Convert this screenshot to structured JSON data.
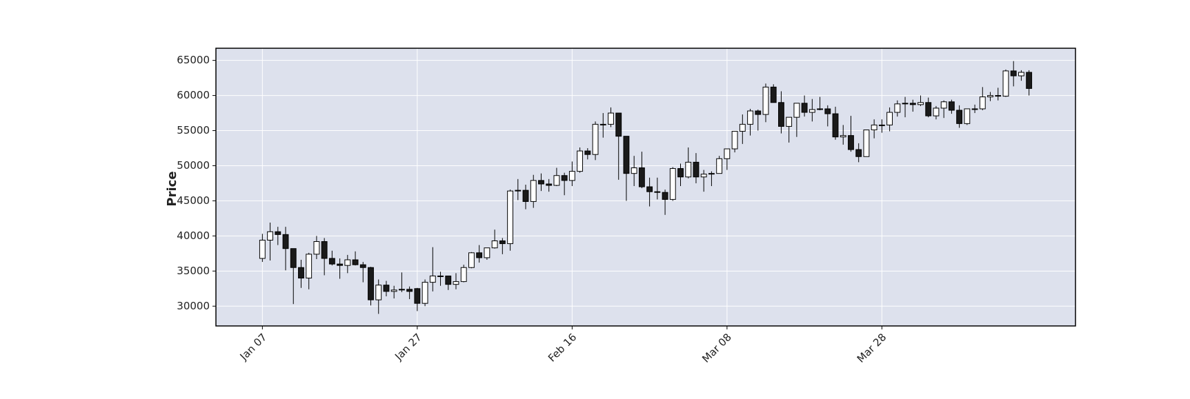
{
  "chart_data": {
    "type": "candlestick",
    "ylabel": "Price",
    "xlim": [
      -6,
      105
    ],
    "ylim": [
      27180,
      66730
    ],
    "xticks": [
      {
        "value": 0,
        "label": "Jan 07"
      },
      {
        "value": 20,
        "label": "Jan 27"
      },
      {
        "value": 40,
        "label": "Feb 16"
      },
      {
        "value": 60,
        "label": "Mar 08"
      },
      {
        "value": 80,
        "label": "Mar 28"
      }
    ],
    "yticks": [
      30000,
      35000,
      40000,
      45000,
      50000,
      55000,
      60000,
      65000
    ],
    "grid": true,
    "up_color": "#ffffff",
    "down_color": "#1a1a1a",
    "edge_color": "#000000",
    "background": "#dde1ed",
    "open": [
      36800,
      39400,
      40600,
      40200,
      38200,
      35500,
      34000,
      37400,
      39200,
      36800,
      36000,
      35800,
      36600,
      35900,
      35500,
      30900,
      33000,
      32100,
      32300,
      32400,
      32500,
      30400,
      33400,
      34300,
      34300,
      33100,
      33500,
      35500,
      37600,
      36900,
      38300,
      39300,
      38900,
      46400,
      46500,
      44900,
      47900,
      47400,
      47200,
      48600,
      47900,
      49200,
      52100,
      51600,
      55900,
      55900,
      57500,
      54200,
      48900,
      49700,
      47000,
      46300,
      46200,
      45200,
      49600,
      48400,
      50500,
      48400,
      48800,
      48900,
      51000,
      52400,
      54900,
      55900,
      57800,
      57300,
      61200,
      59000,
      55600,
      56900,
      58900,
      57600,
      58000,
      58100,
      57400,
      54100,
      54300,
      52300,
      51300,
      55100,
      55800,
      55800,
      57600,
      58800,
      58900,
      58700,
      59000,
      57100,
      58200,
      59100,
      57900,
      56000,
      58100,
      58100,
      59800,
      60000,
      59900,
      63500,
      62800,
      63300
    ],
    "high": [
      40300,
      41900,
      41300,
      41300,
      38200,
      36600,
      37600,
      40000,
      39700,
      37900,
      36800,
      37300,
      37800,
      36300,
      35600,
      33800,
      33600,
      32900,
      34800,
      32800,
      32600,
      33800,
      38400,
      34900,
      34300,
      34700,
      35900,
      37700,
      38700,
      38300,
      40900,
      39700,
      46600,
      48100,
      47300,
      48700,
      48900,
      48100,
      49700,
      49000,
      50600,
      52600,
      52500,
      56300,
      57500,
      58300,
      57500,
      54200,
      51400,
      52000,
      48300,
      48300,
      46600,
      49800,
      50300,
      52600,
      51800,
      49400,
      49200,
      51400,
      52400,
      54900,
      57300,
      58100,
      58000,
      61700,
      61600,
      60600,
      56900,
      58900,
      60000,
      59500,
      59800,
      58600,
      58400,
      55800,
      57100,
      53200,
      55100,
      56600,
      56600,
      58300,
      59300,
      59800,
      59400,
      60000,
      59700,
      58500,
      59300,
      59400,
      58600,
      58100,
      58700,
      61200,
      60500,
      61100,
      63700,
      64900,
      63600,
      63600
    ],
    "low": [
      36300,
      36500,
      38700,
      35100,
      30300,
      32600,
      32400,
      36700,
      34400,
      35800,
      33900,
      34700,
      35800,
      33400,
      30100,
      28900,
      31400,
      31100,
      32000,
      31000,
      29300,
      30000,
      32100,
      32900,
      32300,
      32400,
      33400,
      35400,
      36200,
      36600,
      38200,
      37400,
      37900,
      45100,
      43800,
      44000,
      46400,
      46300,
      47100,
      45800,
      47100,
      49000,
      50900,
      50800,
      54000,
      55500,
      48000,
      45000,
      47100,
      46800,
      44200,
      45200,
      43000,
      45000,
      47100,
      48200,
      47500,
      46300,
      47100,
      48900,
      49400,
      51900,
      53100,
      54300,
      55000,
      56200,
      59000,
      54600,
      53300,
      54100,
      57000,
      56300,
      57900,
      55600,
      53700,
      53000,
      52000,
      50500,
      51300,
      53900,
      54700,
      54900,
      57000,
      56900,
      57700,
      58500,
      56900,
      56600,
      56800,
      57400,
      55400,
      55800,
      57500,
      57900,
      59200,
      59300,
      59800,
      61300,
      62100,
      60000
    ],
    "close": [
      39400,
      40600,
      40200,
      38200,
      35500,
      34000,
      37400,
      39200,
      36800,
      36000,
      35800,
      36600,
      35900,
      35500,
      30900,
      33000,
      32100,
      32300,
      32400,
      32100,
      30400,
      33400,
      34300,
      34300,
      33100,
      33500,
      35500,
      37600,
      36900,
      38300,
      39300,
      38900,
      46400,
      46500,
      44900,
      47900,
      47400,
      47200,
      48600,
      47900,
      49200,
      52100,
      51600,
      55900,
      55900,
      57500,
      54200,
      48900,
      49700,
      47000,
      46300,
      46200,
      45200,
      49600,
      48400,
      50500,
      48400,
      48800,
      48900,
      51000,
      52400,
      54900,
      55900,
      57800,
      57300,
      61200,
      59000,
      55600,
      56900,
      58900,
      57600,
      58000,
      58100,
      57400,
      54100,
      54300,
      52300,
      51300,
      55100,
      55800,
      55800,
      57600,
      58800,
      58900,
      58700,
      59000,
      57100,
      58200,
      59100,
      57900,
      56000,
      58100,
      58100,
      59800,
      60000,
      59900,
      63500,
      62800,
      63300,
      61000
    ]
  }
}
